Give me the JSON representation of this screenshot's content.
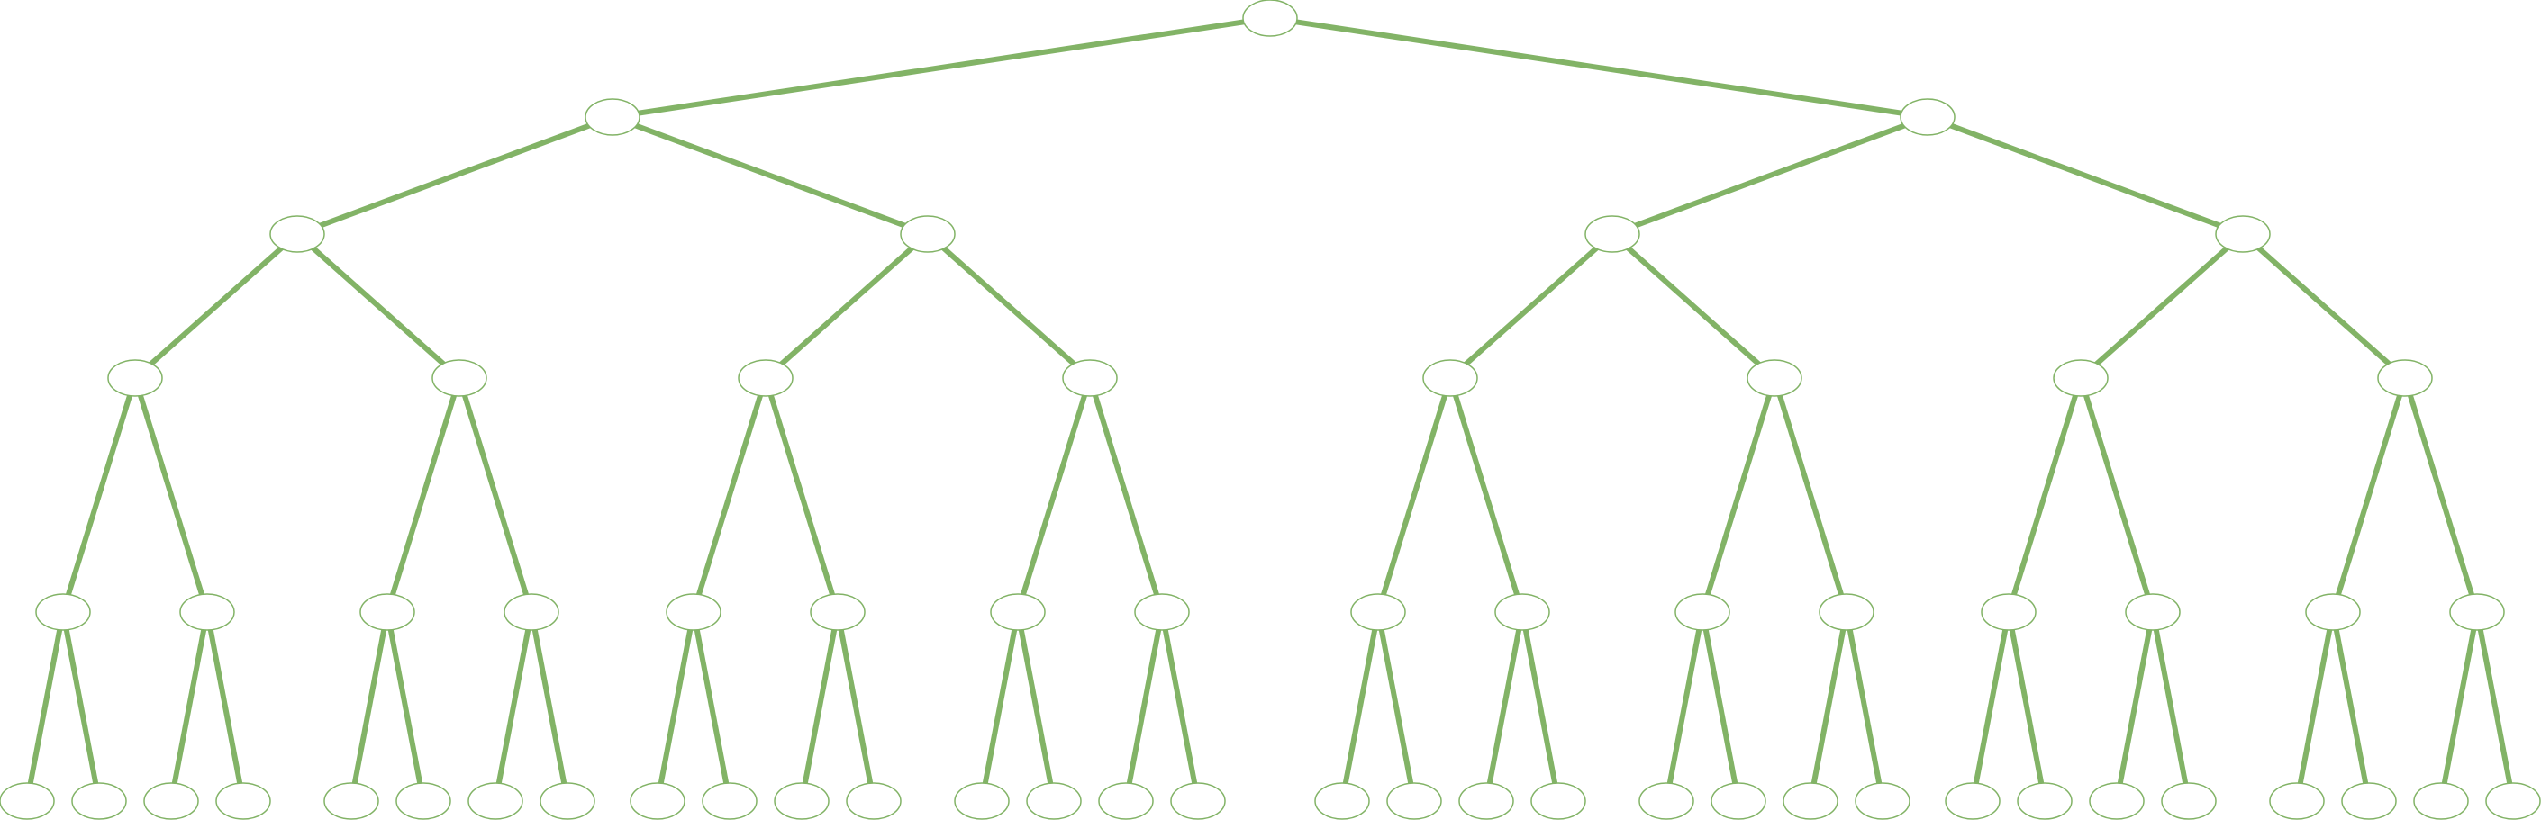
{
  "diagram": {
    "type": "binary-tree",
    "depth": 6,
    "edge_color": "#82b366",
    "node_stroke_color": "#82b366",
    "node_fill_color": "#ffffff",
    "nodes": [
      {
        "id": "n1",
        "label": ""
      },
      {
        "id": "n2",
        "label": ""
      },
      {
        "id": "n3",
        "label": ""
      },
      {
        "id": "n4",
        "label": ""
      },
      {
        "id": "n5",
        "label": ""
      },
      {
        "id": "n6",
        "label": ""
      },
      {
        "id": "n7",
        "label": ""
      },
      {
        "id": "n8",
        "label": ""
      },
      {
        "id": "n9",
        "label": ""
      },
      {
        "id": "n10",
        "label": ""
      },
      {
        "id": "n11",
        "label": ""
      },
      {
        "id": "n12",
        "label": ""
      },
      {
        "id": "n13",
        "label": ""
      },
      {
        "id": "n14",
        "label": ""
      },
      {
        "id": "n15",
        "label": ""
      },
      {
        "id": "n16",
        "label": ""
      },
      {
        "id": "n17",
        "label": ""
      },
      {
        "id": "n18",
        "label": ""
      },
      {
        "id": "n19",
        "label": ""
      },
      {
        "id": "n20",
        "label": ""
      },
      {
        "id": "n21",
        "label": ""
      },
      {
        "id": "n22",
        "label": ""
      },
      {
        "id": "n23",
        "label": ""
      },
      {
        "id": "n24",
        "label": ""
      },
      {
        "id": "n25",
        "label": ""
      },
      {
        "id": "n26",
        "label": ""
      },
      {
        "id": "n27",
        "label": ""
      },
      {
        "id": "n28",
        "label": ""
      },
      {
        "id": "n29",
        "label": ""
      },
      {
        "id": "n30",
        "label": ""
      },
      {
        "id": "n31",
        "label": ""
      },
      {
        "id": "n32",
        "label": ""
      },
      {
        "id": "n33",
        "label": ""
      },
      {
        "id": "n34",
        "label": ""
      },
      {
        "id": "n35",
        "label": ""
      },
      {
        "id": "n36",
        "label": ""
      },
      {
        "id": "n37",
        "label": ""
      },
      {
        "id": "n38",
        "label": ""
      },
      {
        "id": "n39",
        "label": ""
      },
      {
        "id": "n40",
        "label": ""
      },
      {
        "id": "n41",
        "label": ""
      },
      {
        "id": "n42",
        "label": ""
      },
      {
        "id": "n43",
        "label": ""
      },
      {
        "id": "n44",
        "label": ""
      },
      {
        "id": "n45",
        "label": ""
      },
      {
        "id": "n46",
        "label": ""
      },
      {
        "id": "n47",
        "label": ""
      },
      {
        "id": "n48",
        "label": ""
      },
      {
        "id": "n49",
        "label": ""
      },
      {
        "id": "n50",
        "label": ""
      },
      {
        "id": "n51",
        "label": ""
      },
      {
        "id": "n52",
        "label": ""
      },
      {
        "id": "n53",
        "label": ""
      },
      {
        "id": "n54",
        "label": ""
      },
      {
        "id": "n55",
        "label": ""
      },
      {
        "id": "n56",
        "label": ""
      },
      {
        "id": "n57",
        "label": ""
      },
      {
        "id": "n58",
        "label": ""
      },
      {
        "id": "n59",
        "label": ""
      },
      {
        "id": "n60",
        "label": ""
      },
      {
        "id": "n61",
        "label": ""
      },
      {
        "id": "n62",
        "label": ""
      },
      {
        "id": "n63",
        "label": ""
      }
    ]
  }
}
